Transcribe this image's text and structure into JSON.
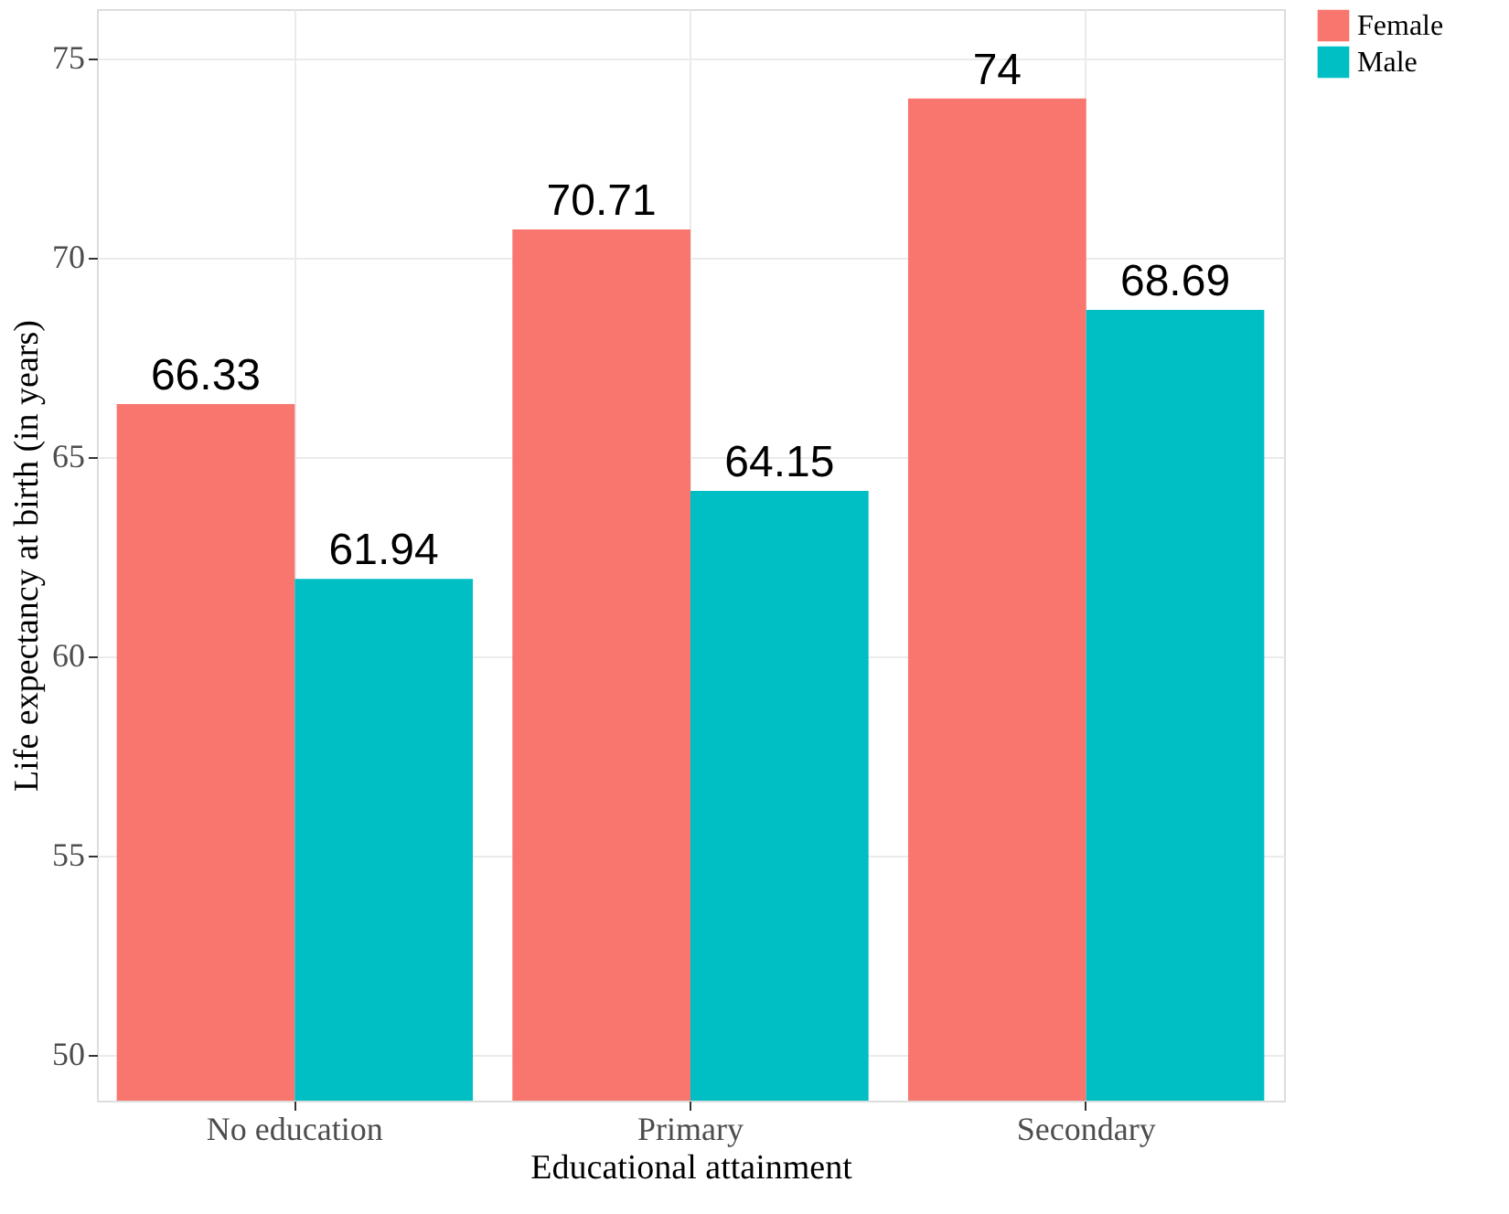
{
  "chart_data": {
    "type": "bar",
    "xlabel": "Educational attainment",
    "ylabel": "Life expectancy at birth (in years)",
    "categories": [
      "No education",
      "Primary",
      "Secondary"
    ],
    "series": [
      {
        "name": "Female",
        "color": "#f8766d",
        "values": [
          66.33,
          70.71,
          74
        ]
      },
      {
        "name": "Male",
        "color": "#00bfc4",
        "values": [
          61.94,
          64.15,
          68.69
        ]
      }
    ],
    "ylim": [
      48.85,
      76.24
    ],
    "yticks": [
      50,
      55,
      60,
      65,
      70,
      75
    ],
    "grid": true,
    "legend": "right",
    "data_labels": true
  }
}
